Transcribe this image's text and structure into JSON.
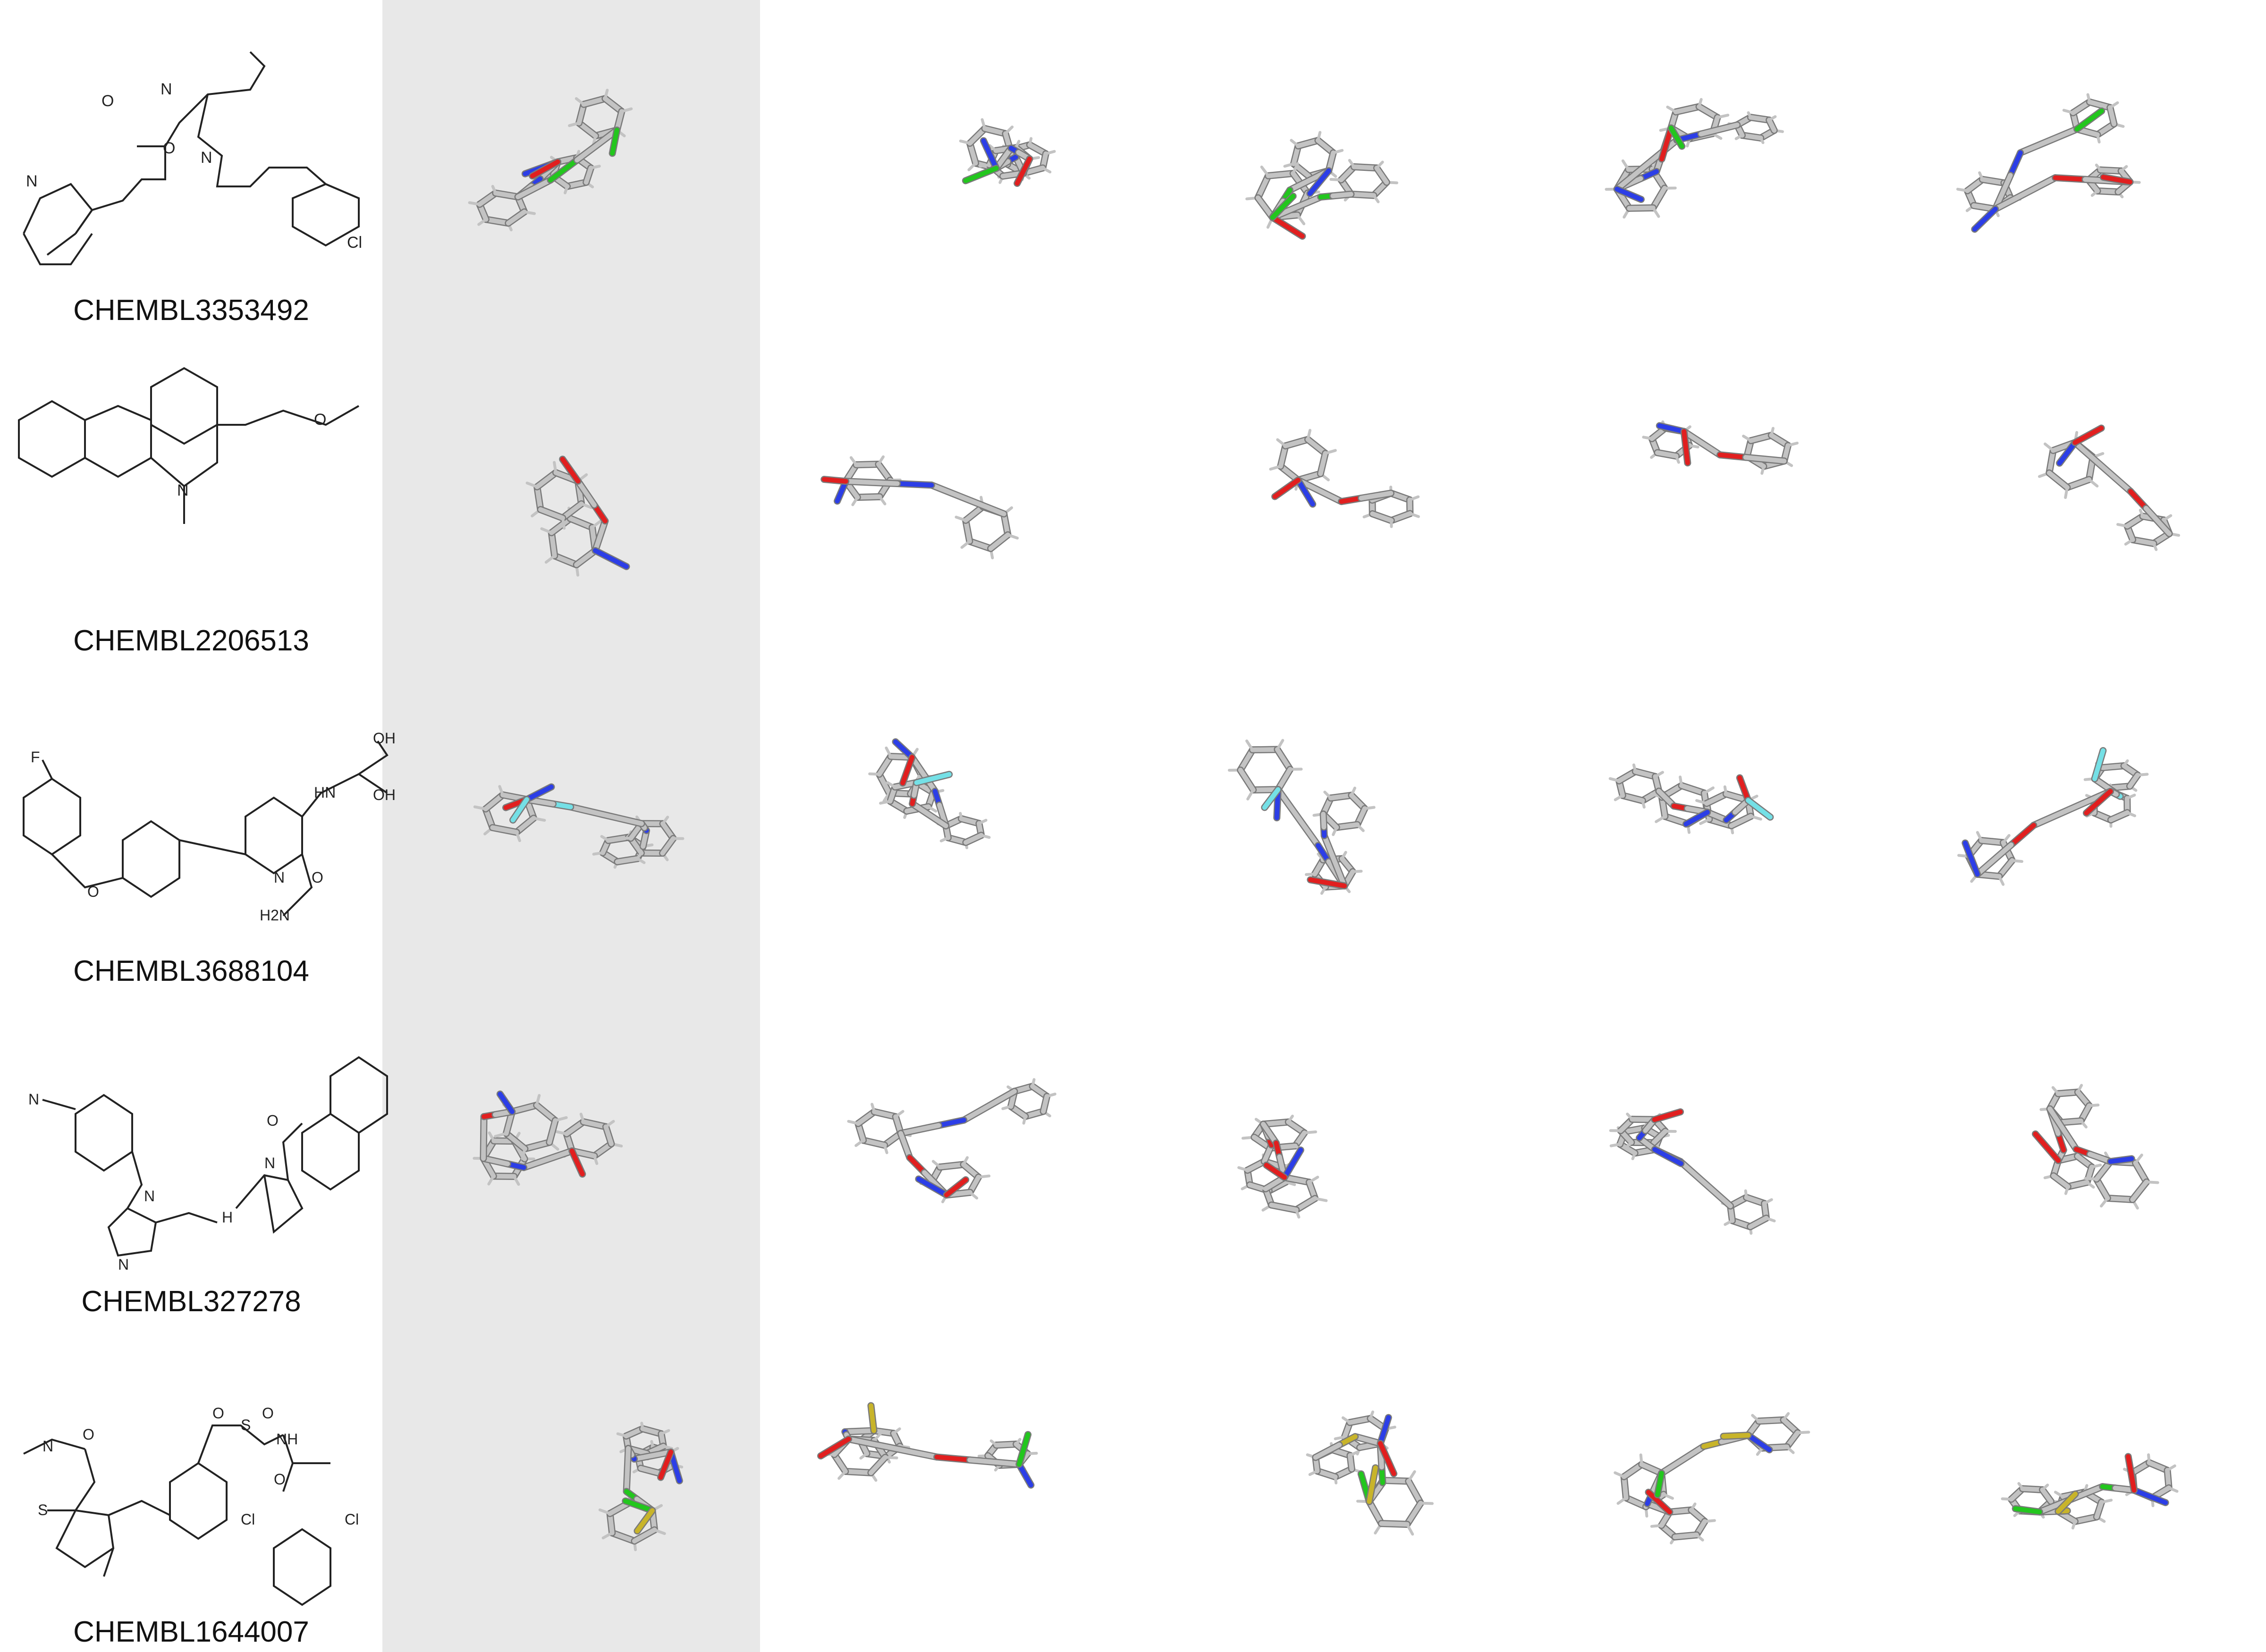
{
  "colors": {
    "highlight_column": "#e8e8e8",
    "carbon": "#c3c3c3",
    "carbon_shade": "#7a7a7a",
    "nitrogen": "#2c3ee6",
    "oxygen": "#e11f1f",
    "chlorine": "#23c61e",
    "fluorine": "#74e0e6",
    "sulfur": "#c8b42a",
    "skeletal_line": "#222222"
  },
  "rows": [
    {
      "id": "CHEMBL3353492",
      "label": "CHEMBL3353492",
      "atoms_2d": [
        "O",
        "N",
        "O",
        "N",
        "N",
        "Cl"
      ],
      "hetero_3d": [
        "N",
        "O",
        "Cl"
      ]
    },
    {
      "id": "CHEMBL2206513",
      "label": "CHEMBL2206513",
      "atoms_2d": [
        "O",
        "N"
      ],
      "hetero_3d": [
        "N",
        "O"
      ]
    },
    {
      "id": "CHEMBL3688104",
      "label": "CHEMBL3688104",
      "atoms_2d": [
        "F",
        "O",
        "N",
        "HN",
        "OH",
        "OH",
        "O",
        "H2N"
      ],
      "hetero_3d": [
        "N",
        "O",
        "F"
      ]
    },
    {
      "id": "CHEMBL327278",
      "label": "CHEMBL327278",
      "atoms_2d": [
        "N",
        "N",
        "N",
        "H",
        "N",
        "O"
      ],
      "hetero_3d": [
        "N",
        "O"
      ]
    },
    {
      "id": "CHEMBL1644007",
      "label": "CHEMBL1644007",
      "atoms_2d": [
        "O",
        "N",
        "S",
        "O",
        "S",
        "O",
        "NH",
        "O",
        "Cl",
        "Cl"
      ],
      "hetero_3d": [
        "N",
        "O",
        "Cl",
        "S"
      ]
    }
  ]
}
